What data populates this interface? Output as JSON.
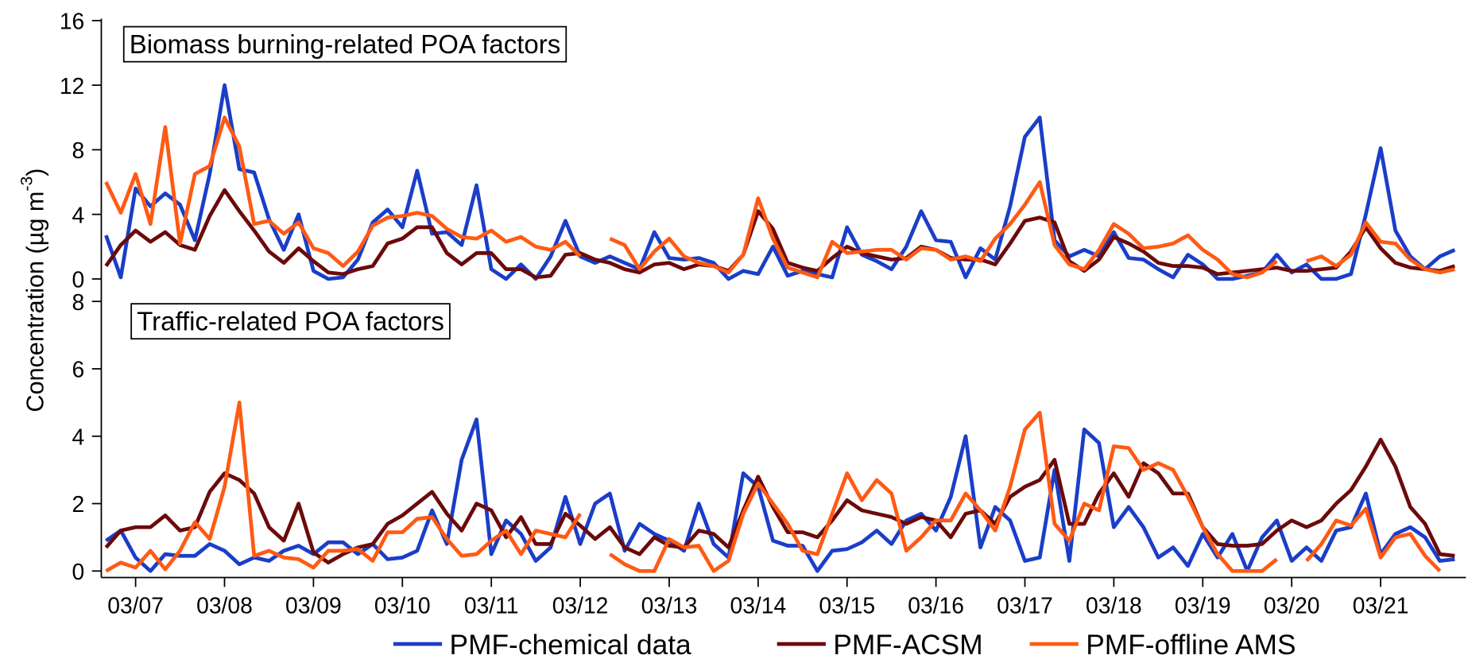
{
  "y_label": [
    "Concentration (µg m",
    "-3",
    ")"
  ],
  "chart_data": [
    {
      "type": "line",
      "title": "Biomass burning-related POA factors",
      "x": [
        -8,
        -4,
        0,
        4,
        8,
        12,
        16,
        20,
        24,
        28,
        32,
        36,
        40,
        44,
        48,
        52,
        56,
        60,
        64,
        68,
        72,
        76,
        80,
        84,
        88,
        92,
        96,
        100,
        104,
        108,
        112,
        116,
        120,
        124,
        128,
        132,
        136,
        140,
        144,
        148,
        152,
        156,
        160,
        164,
        168,
        172,
        176,
        180,
        184,
        188,
        192,
        196,
        200,
        204,
        208,
        212,
        216,
        220,
        224,
        228,
        232,
        236,
        240,
        244,
        248,
        252,
        256,
        260,
        264,
        268,
        272,
        276,
        280,
        284,
        288,
        292,
        296,
        300,
        304,
        308,
        312,
        316,
        320,
        324,
        328,
        332,
        336,
        340,
        344,
        348,
        352,
        356
      ],
      "xlim": [
        -9,
        358
      ],
      "ylim": [
        0,
        16
      ],
      "yticks": [
        0,
        4,
        8,
        12,
        16
      ],
      "series": [
        {
          "color": "#1a3ec8",
          "values": [
            2.7,
            0.1,
            5.6,
            4.5,
            5.3,
            4.6,
            2.4,
            6.5,
            12,
            6.8,
            6.6,
            3.7,
            1.8,
            4.0,
            0.5,
            0,
            0.1,
            1.2,
            3.5,
            4.3,
            3.2,
            6.7,
            2.8,
            2.9,
            2.1,
            5.8,
            0.6,
            0,
            0.9,
            0,
            1.4,
            3.6,
            1.4,
            1.0,
            1.4,
            1.0,
            0.6,
            2.9,
            1.3,
            1.2,
            1.3,
            1.0,
            0,
            0.5,
            0.3,
            2.0,
            0.2,
            0.5,
            0.3,
            0.1,
            3.2,
            1.5,
            1.1,
            0.6,
            2.0,
            4.2,
            2.4,
            2.3,
            0.1,
            1.9,
            1.2,
            4.5,
            8.8,
            10,
            2.4,
            1.4,
            1.8,
            1.4,
            2.9,
            1.3,
            1.2,
            0.6,
            0.1,
            1.5,
            0.9,
            0,
            0,
            0.2,
            0.4,
            1.5,
            0.4,
            0.9,
            0,
            0,
            0.3,
            4,
            8.1,
            3,
            1.4,
            0.6,
            1.4,
            1.8
          ]
        },
        {
          "color": "#6b0a0a",
          "values": [
            0.8,
            2.1,
            3.0,
            2.3,
            2.9,
            2.1,
            1.8,
            3.9,
            5.5,
            4.2,
            3.0,
            1.7,
            1.0,
            1.9,
            1.1,
            0.4,
            0.3,
            0.6,
            0.8,
            2.2,
            2.5,
            3.2,
            3.2,
            1.6,
            0.9,
            1.6,
            1.6,
            0.6,
            0.6,
            0.1,
            0.2,
            1.5,
            1.6,
            1.2,
            1.0,
            0.6,
            0.4,
            0.9,
            1.0,
            0.6,
            0.9,
            0.8,
            0.5,
            1.5,
            4.2,
            3.1,
            1.0,
            0.7,
            0.5,
            1.3,
            2.0,
            1.6,
            1.4,
            1.2,
            1.3,
            2.0,
            1.8,
            1.3,
            1.2,
            1.2,
            0.9,
            2.2,
            3.6,
            3.8,
            3.5,
            1.1,
            0.5,
            1.2,
            2.6,
            2.2,
            1.7,
            1.0,
            0.8,
            0.8,
            0.7,
            0.3,
            0.4,
            0.5,
            0.6,
            0.7,
            0.5,
            0.5,
            0.6,
            0.7,
            1.7,
            3.2,
            1.9,
            1.0,
            0.7,
            0.6,
            0.5,
            0.8
          ]
        },
        {
          "color": "#ff5a14",
          "values": [
            6,
            4.1,
            6.5,
            3.4,
            9.4,
            2.2,
            6.5,
            7.0,
            10,
            8.2,
            3.4,
            3.6,
            2.8,
            3.5,
            1.9,
            1.6,
            0.8,
            1.7,
            3.3,
            3.8,
            3.9,
            4.1,
            3.9,
            3.1,
            2.6,
            2.5,
            3.0,
            2.3,
            2.6,
            2.0,
            1.8,
            2.3,
            1.4,
            null,
            2.5,
            2.1,
            0.6,
            1.7,
            2.5,
            1.4,
            1.0,
            0.8,
            0.4,
            1.5,
            5.0,
            2.5,
            0.7,
            0.4,
            0.1,
            2.3,
            1.6,
            1.7,
            1.8,
            1.8,
            1.2,
            1.9,
            1.8,
            1.2,
            1.4,
            1.1,
            2.5,
            3.4,
            4.6,
            6.0,
            2.1,
            0.9,
            0.6,
            1.8,
            3.4,
            2.8,
            1.9,
            2.0,
            2.2,
            2.7,
            1.8,
            1.2,
            0.3,
            0.1,
            0.4,
            1.1,
            null,
            1.1,
            1.4,
            0.8,
            1.5,
            3.5,
            2.3,
            2.2,
            1.2,
            0.6,
            0.4,
            0.6
          ]
        }
      ]
    },
    {
      "type": "line",
      "title": "Traffic-related POA factors",
      "x": [
        -8,
        -4,
        0,
        4,
        8,
        12,
        16,
        20,
        24,
        28,
        32,
        36,
        40,
        44,
        48,
        52,
        56,
        60,
        64,
        68,
        72,
        76,
        80,
        84,
        88,
        92,
        96,
        100,
        104,
        108,
        112,
        116,
        120,
        124,
        128,
        132,
        136,
        140,
        144,
        148,
        152,
        156,
        160,
        164,
        168,
        172,
        176,
        180,
        184,
        188,
        192,
        196,
        200,
        204,
        208,
        212,
        216,
        220,
        224,
        228,
        232,
        236,
        240,
        244,
        248,
        252,
        256,
        260,
        264,
        268,
        272,
        276,
        280,
        284,
        288,
        292,
        296,
        300,
        304,
        308,
        312,
        316,
        320,
        324,
        328,
        332,
        336,
        340,
        344,
        348,
        352,
        356
      ],
      "xlim": [
        -9,
        358
      ],
      "ylim": [
        0,
        8
      ],
      "yticks": [
        0,
        2,
        4,
        6,
        8
      ],
      "xticks": [
        {
          "value": 0,
          "label": "03/07"
        },
        {
          "value": 24,
          "label": "03/08"
        },
        {
          "value": 48,
          "label": "03/09"
        },
        {
          "value": 72,
          "label": "03/10"
        },
        {
          "value": 96,
          "label": "03/11"
        },
        {
          "value": 120,
          "label": "03/12"
        },
        {
          "value": 144,
          "label": "03/13"
        },
        {
          "value": 168,
          "label": "03/14"
        },
        {
          "value": 192,
          "label": "03/15"
        },
        {
          "value": 216,
          "label": "03/16"
        },
        {
          "value": 240,
          "label": "03/17"
        },
        {
          "value": 264,
          "label": "03/18"
        },
        {
          "value": 288,
          "label": "03/19"
        },
        {
          "value": 312,
          "label": "03/20"
        },
        {
          "value": 336,
          "label": "03/21"
        }
      ],
      "series": [
        {
          "name": "PMF-chemical data",
          "color": "#1a3ec8",
          "values": [
            0.9,
            1.2,
            0.4,
            0,
            0.5,
            0.45,
            0.45,
            0.8,
            0.6,
            0.2,
            0.4,
            0.3,
            0.6,
            0.75,
            0.5,
            0.85,
            0.85,
            0.5,
            0.8,
            0.35,
            0.4,
            0.6,
            1.8,
            0.8,
            3.3,
            4.5,
            0.5,
            1.5,
            1.1,
            0.3,
            0.7,
            2.2,
            0.8,
            2.0,
            2.3,
            0.6,
            1.4,
            1.1,
            0.9,
            0.6,
            2.0,
            0.8,
            0.4,
            2.9,
            2.5,
            0.9,
            0.75,
            0.75,
            0,
            0.6,
            0.65,
            0.85,
            1.2,
            0.8,
            1.5,
            1.7,
            1.2,
            2.2,
            4.0,
            0.7,
            1.9,
            1.5,
            0.3,
            0.4,
            3.0,
            0.3,
            4.2,
            3.8,
            1.3,
            1.9,
            1.3,
            0.4,
            0.7,
            0.15,
            1.1,
            0.4,
            1.1,
            0,
            1.0,
            1.5,
            0.3,
            0.7,
            0.3,
            1.2,
            1.3,
            2.3,
            0.5,
            1.1,
            1.3,
            1.0,
            0.3,
            0.35
          ]
        },
        {
          "name": "PMF-ACSM",
          "color": "#6b0a0a",
          "values": [
            0.7,
            1.2,
            1.3,
            1.3,
            1.65,
            1.2,
            1.3,
            2.35,
            2.9,
            2.7,
            2.3,
            1.3,
            0.9,
            2.0,
            0.55,
            0.25,
            0.5,
            0.7,
            0.8,
            1.4,
            1.65,
            2.0,
            2.35,
            1.7,
            1.2,
            2.0,
            1.8,
            1.0,
            1.6,
            0.8,
            0.8,
            1.7,
            1.35,
            0.95,
            1.3,
            0.7,
            0.5,
            1.0,
            0.75,
            0.7,
            1.2,
            1.1,
            0.7,
            1.8,
            2.8,
            1.9,
            1.15,
            1.15,
            1.0,
            1.5,
            2.1,
            1.8,
            1.7,
            1.6,
            1.4,
            1.6,
            1.5,
            1.0,
            1.7,
            1.8,
            1.4,
            2.2,
            2.5,
            2.7,
            3.3,
            1.4,
            1.4,
            2.3,
            2.9,
            2.2,
            3.2,
            2.9,
            2.3,
            2.3,
            1.3,
            0.8,
            0.75,
            0.75,
            0.8,
            1.2,
            1.5,
            1.3,
            1.5,
            2.0,
            2.4,
            3.1,
            3.9,
            3.1,
            1.9,
            1.4,
            0.5,
            0.45
          ]
        },
        {
          "name": "PMF-offline AMS",
          "color": "#ff5a14",
          "values": [
            0,
            0.25,
            0.1,
            0.6,
            0.05,
            0.6,
            1.45,
            0.95,
            2.5,
            5.0,
            0.45,
            0.6,
            0.4,
            0.35,
            0.1,
            0.6,
            0.6,
            0.65,
            0.3,
            1.15,
            1.15,
            1.55,
            1.6,
            0.95,
            0.45,
            0.5,
            0.9,
            1.2,
            0.5,
            1.2,
            1.1,
            1.0,
            1.7,
            null,
            0.5,
            0.2,
            0,
            0,
            0.95,
            0.7,
            0.75,
            0,
            0.3,
            1.7,
            2.6,
            2.0,
            1.4,
            0.6,
            0.5,
            1.7,
            2.9,
            2.1,
            2.7,
            2.3,
            0.6,
            1.0,
            1.5,
            1.5,
            2.3,
            1.8,
            1.2,
            2.5,
            4.2,
            4.7,
            1.4,
            0.9,
            2.0,
            1.8,
            3.7,
            3.65,
            3.0,
            3.2,
            3.0,
            2.2,
            1.3,
            0.5,
            0,
            0,
            0,
            0.35,
            null,
            0.3,
            0.8,
            1.5,
            1.35,
            1.85,
            0.4,
            1.0,
            1.1,
            0.45,
            0,
            null
          ]
        }
      ]
    }
  ]
}
